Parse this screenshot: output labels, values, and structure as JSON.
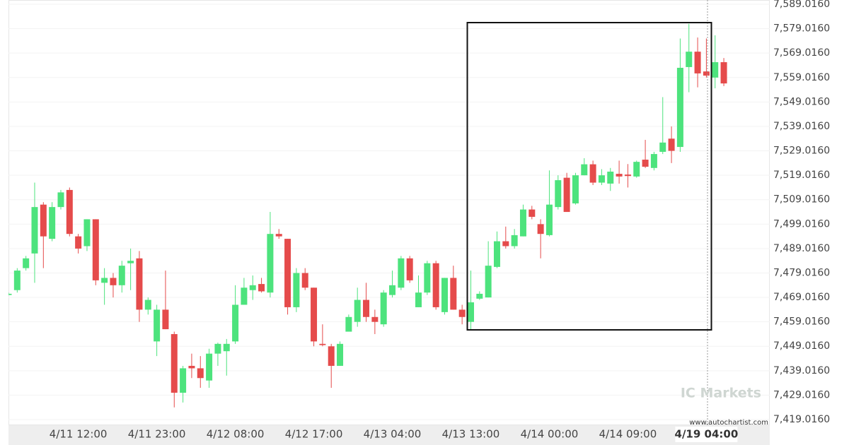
{
  "chart_data": {
    "type": "candlestick",
    "categories": [
      null,
      null,
      null,
      null,
      null,
      null,
      null,
      null,
      "4/11 12:00",
      null,
      null,
      null,
      null,
      null,
      null,
      null,
      null,
      "4/11 23:00",
      null,
      null,
      null,
      null,
      null,
      null,
      null,
      null,
      "4/12 08:00",
      null,
      null,
      null,
      null,
      null,
      null,
      null,
      null,
      "4/12 17:00",
      null,
      null,
      null,
      null,
      null,
      null,
      null,
      null,
      "4/13 04:00",
      null,
      null,
      null,
      null,
      null,
      null,
      null,
      null,
      "4/13 13:00",
      null,
      null,
      null,
      null,
      null,
      null,
      null,
      null,
      "4/14 00:00",
      null,
      null,
      null,
      null,
      null,
      null,
      null,
      null,
      "4/14 09:00",
      null,
      null,
      null,
      null,
      null,
      null,
      null,
      null,
      "4/19 04:00",
      null,
      null
    ],
    "open": [
      7470,
      7472,
      7481,
      7487,
      7507,
      7493,
      7506,
      7513,
      7494,
      7490,
      7501,
      7475,
      7477,
      7474,
      7483,
      7485,
      7464,
      7451,
      7464,
      7454,
      7430,
      7441,
      7440,
      7435,
      7446,
      7447,
      7451,
      7466,
      7472,
      7474.5,
      7471,
      7495,
      7493,
      7465,
      7479,
      7473,
      7450,
      7449,
      7441,
      7455,
      7459,
      7468,
      7461,
      7458,
      7470,
      7473,
      7485,
      7465,
      7471,
      7483,
      7463,
      7477,
      7464,
      7459,
      7468.5,
      7469,
      7481.5,
      7492,
      7490,
      7494,
      7505,
      7499,
      7494.5,
      7506,
      7518,
      7507.5,
      7519,
      7523.5,
      7516,
      7515.6,
      7519.6,
      7519.3,
      7518.5,
      7525.4,
      7522,
      7528.6,
      7534,
      7530.6,
      7563.3,
      7569.6,
      7561.5,
      7559,
      7565.3
    ],
    "high": [
      7471,
      7481,
      7486,
      7516,
      7508,
      7508,
      7513,
      7514,
      7495,
      7501,
      7501,
      7481,
      7479,
      7484,
      7489,
      7488,
      7469,
      7466,
      7480,
      7455,
      7441,
      7446,
      7445,
      7448,
      7450.5,
      7452,
      7474,
      7477,
      7478,
      7477,
      7504,
      7497,
      7493,
      7481,
      7481,
      7473,
      7458,
      7450,
      7451,
      7462,
      7473,
      7475,
      7464,
      7472,
      7480,
      7486,
      7486,
      7478,
      7484,
      7484,
      7477,
      7482,
      7466,
      7480,
      7471.5,
      7492,
      7496,
      7498,
      7497,
      7507,
      7506.5,
      7501,
      7521,
      7519,
      7520,
      7520,
      7526,
      7525,
      7521.5,
      7522,
      7525,
      7523.6,
      7525,
      7533.5,
      7528.6,
      7551,
      7539,
      7575,
      7581,
      7575.4,
      7575,
      7576.3,
      7567
    ],
    "low": [
      7470,
      7471,
      7480,
      7475,
      7481,
      7492,
      7505,
      7494,
      7487,
      7488,
      7474,
      7466,
      7469,
      7471,
      7472,
      7459,
      7462,
      7445,
      7456,
      7424,
      7426,
      7436,
      7432,
      7432,
      7441,
      7437,
      7450,
      7466,
      7468,
      7471,
      7469,
      7493,
      7462,
      7463,
      7472,
      7449,
      7449,
      7432,
      7441,
      7455,
      7457,
      7459,
      7454,
      7457,
      7469,
      7472,
      7475,
      7465,
      7470,
      7464,
      7462,
      7464,
      7458,
      7456,
      7468,
      7469,
      7481,
      7489,
      7489,
      7494,
      7501,
      7485,
      7494,
      7505,
      7504,
      7507,
      7519,
      7515,
      7515,
      7512.6,
      7515.6,
      7514,
      7518,
      7522,
      7521,
      7527.7,
      7524,
      7528.6,
      7553,
      7555,
      7559,
      7554.6,
      7555.5
    ],
    "close": [
      7470.5,
      7480,
      7485,
      7506,
      7494,
      7506,
      7512,
      7495,
      7489,
      7501,
      7476,
      7477,
      7474,
      7482,
      7484,
      7464,
      7468,
      7464,
      7456,
      7430,
      7440,
      7440,
      7436,
      7446,
      7450,
      7450,
      7466,
      7473,
      7474,
      7471.5,
      7495,
      7494,
      7465,
      7479,
      7473,
      7451,
      7449.5,
      7441,
      7450,
      7461,
      7468,
      7461,
      7459,
      7471,
      7474,
      7485,
      7476,
      7471,
      7483,
      7465,
      7477,
      7464,
      7461,
      7467,
      7470.5,
      7482,
      7492,
      7490,
      7494.5,
      7505,
      7502,
      7495,
      7507,
      7517,
      7504,
      7519,
      7523.5,
      7516,
      7519,
      7520.5,
      7518.5,
      7518.7,
      7524.5,
      7522.5,
      7527.7,
      7532.4,
      7529,
      7563,
      7569.6,
      7560.7,
      7559.8,
      7565.3,
      7556.6
    ],
    "up_color": "#4de37d",
    "down_color": "#e54b4b",
    "ylim": [
      7416.7,
      7590.75
    ],
    "yticks": [
      {
        "value": 7419.016,
        "label": "7,419.0160"
      },
      {
        "value": 7429.016,
        "label": "7,429.0160"
      },
      {
        "value": 7439.016,
        "label": "7,439.0160"
      },
      {
        "value": 7449.016,
        "label": "7,449.0160"
      },
      {
        "value": 7459.016,
        "label": "7,459.0160"
      },
      {
        "value": 7469.016,
        "label": "7,469.0160"
      },
      {
        "value": 7479.016,
        "label": "7,479.0160"
      },
      {
        "value": 7489.016,
        "label": "7,489.0160"
      },
      {
        "value": 7499.016,
        "label": "7,499.0160"
      },
      {
        "value": 7509.016,
        "label": "7,509.0160"
      },
      {
        "value": 7519.016,
        "label": "7,519.0160"
      },
      {
        "value": 7529.016,
        "label": "7,529.0160"
      },
      {
        "value": 7539.016,
        "label": "7,539.0160"
      },
      {
        "value": 7549.016,
        "label": "7,549.0160"
      },
      {
        "value": 7559.016,
        "label": "7,559.0160"
      },
      {
        "value": 7569.016,
        "label": "7,569.0160"
      },
      {
        "value": 7579.016,
        "label": "7,579.0160"
      },
      {
        "value": 7589.016,
        "label": "7,589.0160"
      }
    ],
    "grid": true,
    "watermark": "IC Markets",
    "source": "www.autochartist.com"
  }
}
